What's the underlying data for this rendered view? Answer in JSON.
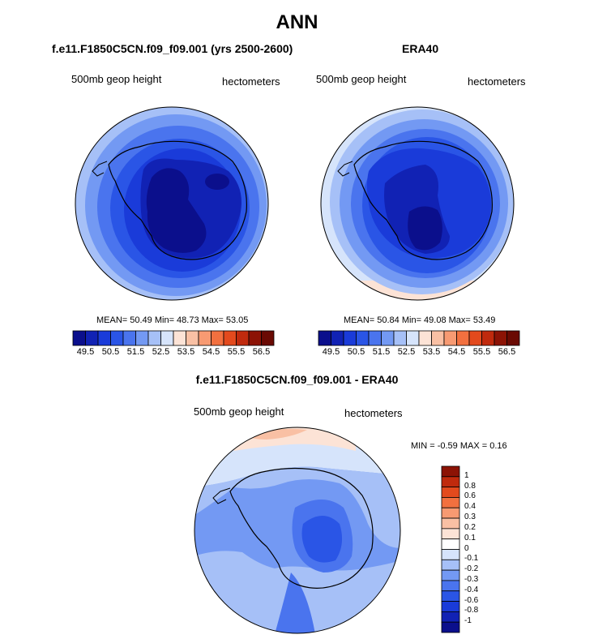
{
  "page": {
    "title": "ANN"
  },
  "panels": {
    "model": {
      "title": "f.e11.F1850C5CN.f09_f09.001 (yrs 2500-2600)",
      "left_label": "500mb geop height",
      "right_label": "hectometers",
      "stats": "MEAN=  50.49  Min=  48.73  Max=  53.05"
    },
    "obs": {
      "title": "ERA40",
      "left_label": "500mb geop height",
      "right_label": "hectometers",
      "stats": "MEAN=  50.84  Min=  49.08  Max=  53.49"
    },
    "diff": {
      "title": "f.e11.F1850C5CN.f09_f09.001 - ERA40",
      "left_label": "500mb geop height",
      "right_label": "hectometers",
      "stats": "MIN =  -0.59 MAX =   0.16"
    }
  },
  "chart_data": [
    {
      "type": "heatmap",
      "title": "f.e11.F1850C5CN.f09_f09.001 (yrs 2500-2600)",
      "field": "500mb geop height",
      "units": "hectometers",
      "projection": "south polar stereographic",
      "mean": 50.49,
      "min": 48.73,
      "max": 53.05,
      "colorbar_levels": [
        49.5,
        50.0,
        50.5,
        51.0,
        51.5,
        52.0,
        52.5,
        53.0,
        53.5,
        54.0,
        54.5,
        55.0,
        55.5,
        56.0,
        56.5
      ],
      "colorbar_tick_labels": [
        "49.5",
        "50.5",
        "51.5",
        "52.5",
        "53.5",
        "54.5",
        "55.5",
        "56.5"
      ],
      "colorbar_colors": [
        "#0b0f8c",
        "#1122b4",
        "#1a3bd9",
        "#2a55e6",
        "#4a74ee",
        "#7399f3",
        "#a6c0f7",
        "#d6e4fb",
        "#fce3d6",
        "#f9c0a4",
        "#f79a72",
        "#f2703f",
        "#e34a1d",
        "#c02a0d",
        "#8c1305",
        "#6a0a03"
      ]
    },
    {
      "type": "heatmap",
      "title": "ERA40",
      "field": "500mb geop height",
      "units": "hectometers",
      "projection": "south polar stereographic",
      "mean": 50.84,
      "min": 49.08,
      "max": 53.49,
      "colorbar_levels": [
        49.5,
        50.0,
        50.5,
        51.0,
        51.5,
        52.0,
        52.5,
        53.0,
        53.5,
        54.0,
        54.5,
        55.0,
        55.5,
        56.0,
        56.5
      ],
      "colorbar_tick_labels": [
        "49.5",
        "50.5",
        "51.5",
        "52.5",
        "53.5",
        "54.5",
        "55.5",
        "56.5"
      ]
    },
    {
      "type": "heatmap",
      "title": "f.e11.F1850C5CN.f09_f09.001 - ERA40",
      "field": "500mb geop height",
      "units": "hectometers",
      "projection": "south polar stereographic",
      "min": -0.59,
      "max": 0.16,
      "colorbar_levels": [
        1,
        0.8,
        0.6,
        0.4,
        0.3,
        0.2,
        0.1,
        0,
        -0.1,
        -0.2,
        -0.3,
        -0.4,
        -0.6,
        -0.8,
        -1
      ],
      "colorbar_tick_labels": [
        "1",
        "0.8",
        "0.6",
        "0.4",
        "0.3",
        "0.2",
        "0.1",
        "0",
        "-0.1",
        "-0.2",
        "-0.3",
        "-0.4",
        "-0.6",
        "-0.8",
        "-1"
      ],
      "colorbar_colors": [
        "#8c1305",
        "#c02a0d",
        "#e34a1d",
        "#f2703f",
        "#f79a72",
        "#f9c0a4",
        "#fce3d6",
        "#ffffff",
        "#d6e4fb",
        "#a6c0f7",
        "#7399f3",
        "#4a74ee",
        "#2a55e6",
        "#1a3bd9",
        "#1122b4",
        "#0b0f8c"
      ]
    }
  ]
}
